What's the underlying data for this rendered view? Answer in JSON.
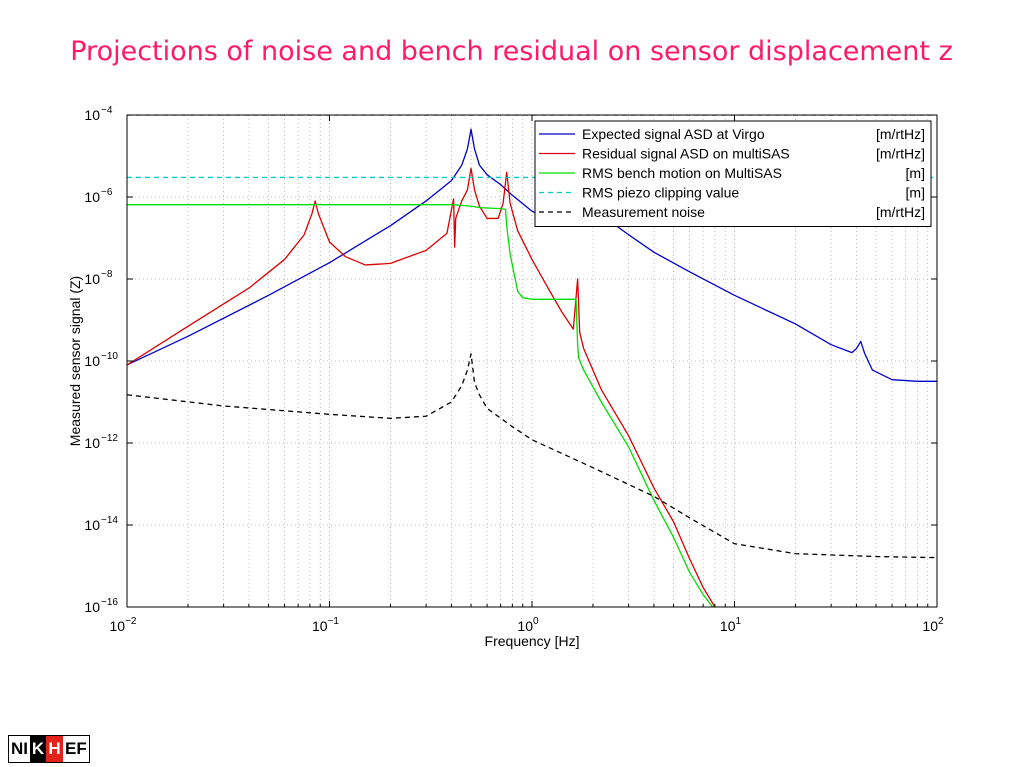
{
  "slide": {
    "title": "Projections of noise and bench residual on sensor displacement z"
  },
  "logo": {
    "text_left": "NI",
    "text_k": "K",
    "text_h": "H",
    "text_right": "EF",
    "colors": {
      "h_box": "#e2231a",
      "k_box": "#000000"
    }
  },
  "chart_data": {
    "type": "line",
    "xlabel": "Frequency [Hz]",
    "ylabel": "Measured sensor signal (Z)",
    "xscale": "log",
    "yscale": "log",
    "xlim": [
      0.01,
      100
    ],
    "ylim": [
      1e-16,
      0.0001
    ],
    "x_ticks": [
      {
        "base": "10",
        "exp": "−2",
        "value": 0.01
      },
      {
        "base": "10",
        "exp": "−1",
        "value": 0.1
      },
      {
        "base": "10",
        "exp": "0",
        "value": 1
      },
      {
        "base": "10",
        "exp": "1",
        "value": 10
      },
      {
        "base": "10",
        "exp": "2",
        "value": 100
      }
    ],
    "y_ticks": [
      {
        "base": "10",
        "exp": "−4",
        "value": 0.0001
      },
      {
        "base": "10",
        "exp": "−6",
        "value": 1e-06
      },
      {
        "base": "10",
        "exp": "−8",
        "value": 1e-08
      },
      {
        "base": "10",
        "exp": "−10",
        "value": 1e-10
      },
      {
        "base": "10",
        "exp": "−12",
        "value": 1e-12
      },
      {
        "base": "10",
        "exp": "−14",
        "value": 1e-14
      },
      {
        "base": "10",
        "exp": "−16",
        "value": 1e-16
      }
    ],
    "grid": true,
    "legend_position": "top-right",
    "series": [
      {
        "name": "Expected signal ASD at Virgo",
        "unit": "[m/rtHz]",
        "color": "#0000cc",
        "dash": "solid",
        "x": [
          0.01,
          0.02,
          0.05,
          0.1,
          0.2,
          0.3,
          0.4,
          0.45,
          0.48,
          0.5,
          0.52,
          0.55,
          0.6,
          0.7,
          0.8,
          1.0,
          1.3,
          1.6,
          2.0,
          2.2,
          2.6,
          3.0,
          4.0,
          6.0,
          10.0,
          20.0,
          30.0,
          38.0,
          40.0,
          42.0,
          44.0,
          48.0,
          60.0,
          80.0,
          100.0
        ],
        "y": [
          8e-11,
          4e-10,
          4e-09,
          2.5e-08,
          2e-07,
          8e-07,
          2.5e-06,
          6e-06,
          1.5e-05,
          4.5e-05,
          1.5e-05,
          6e-06,
          3.5e-06,
          2e-06,
          1.1e-06,
          4.5e-07,
          2.6e-07,
          2.4e-07,
          3.2e-07,
          3e-07,
          2e-07,
          1.2e-07,
          4.5e-08,
          1.5e-08,
          4e-09,
          8e-10,
          2.5e-10,
          1.6e-10,
          2e-10,
          3e-10,
          1.5e-10,
          6e-11,
          3.5e-11,
          3.2e-11,
          3.2e-11
        ]
      },
      {
        "name": "Residual signal ASD on multiSAS",
        "unit": "[m/rtHz]",
        "color": "#dd0000",
        "dash": "solid",
        "x": [
          0.01,
          0.02,
          0.04,
          0.06,
          0.075,
          0.082,
          0.085,
          0.088,
          0.1,
          0.12,
          0.15,
          0.2,
          0.3,
          0.38,
          0.41,
          0.415,
          0.42,
          0.45,
          0.48,
          0.5,
          0.52,
          0.55,
          0.6,
          0.68,
          0.72,
          0.75,
          0.78,
          0.85,
          1.0,
          1.2,
          1.4,
          1.6,
          1.68,
          1.72,
          1.8,
          2.2,
          3.0,
          4.0,
          5.0,
          6.0,
          7.0,
          8.0
        ],
        "y": [
          8e-11,
          7e-10,
          6e-09,
          3e-08,
          1.2e-07,
          4e-07,
          8e-07,
          4e-07,
          8e-08,
          3.5e-08,
          2.2e-08,
          2.4e-08,
          5e-08,
          1.3e-07,
          9e-07,
          6e-08,
          3e-07,
          8e-07,
          1.5e-06,
          5e-06,
          1.5e-06,
          6e-07,
          3e-07,
          3e-07,
          7e-07,
          4e-06,
          7e-07,
          1.5e-07,
          3e-08,
          6e-09,
          1.6e-09,
          6e-10,
          1e-08,
          5e-10,
          2e-10,
          2e-11,
          1.5e-12,
          8e-14,
          1.2e-14,
          1.5e-15,
          3e-16,
          1e-16
        ]
      },
      {
        "name": "RMS bench motion on MultiSAS",
        "unit": "[m]",
        "color": "#00dd00",
        "dash": "solid",
        "x": [
          0.01,
          0.4,
          0.42,
          0.5,
          0.55,
          0.7,
          0.74,
          0.75,
          0.78,
          0.85,
          0.9,
          1.0,
          1.65,
          1.68,
          1.7,
          1.8,
          2.2,
          3.0,
          4.0,
          5.0,
          6.0,
          7.0,
          7.8
        ],
        "y": [
          6.5e-07,
          6.5e-07,
          6.4e-07,
          6e-07,
          5.5e-07,
          5.2e-07,
          5e-07,
          2e-07,
          4e-08,
          5e-09,
          3.5e-09,
          3.2e-09,
          3.2e-09,
          2.5e-10,
          1.2e-10,
          6e-11,
          1e-11,
          8e-13,
          4e-14,
          5e-15,
          7e-16,
          2e-16,
          1e-16
        ]
      },
      {
        "name": "RMS piezo clipping value",
        "unit": "[m]",
        "color": "#00cccc",
        "dash": "dashed",
        "x": [
          0.01,
          100
        ],
        "y": [
          3e-06,
          3e-06
        ]
      },
      {
        "name": "Measurement noise",
        "unit": "[m/rtHz]",
        "color": "#000000",
        "dash": "dashed",
        "x": [
          0.01,
          0.03,
          0.1,
          0.2,
          0.3,
          0.4,
          0.45,
          0.48,
          0.5,
          0.52,
          0.55,
          0.6,
          0.8,
          1.0,
          2.0,
          4.0,
          6.0,
          10.0,
          20.0,
          50.0,
          100.0
        ],
        "y": [
          1.5e-11,
          8e-12,
          5e-12,
          4e-12,
          4.5e-12,
          1e-11,
          2.5e-11,
          6e-11,
          1.5e-10,
          3e-11,
          1.5e-11,
          7e-12,
          2.5e-12,
          1.2e-12,
          2.5e-13,
          5e-14,
          1.5e-14,
          3.5e-15,
          2e-15,
          1.7e-15,
          1.6e-15
        ]
      },
      {
        "name": "",
        "unit": "",
        "color": "#000000",
        "dash": "dashed",
        "x": [
          0.01,
          100
        ],
        "y": [
          0.0001,
          0.0001
        ]
      }
    ]
  }
}
